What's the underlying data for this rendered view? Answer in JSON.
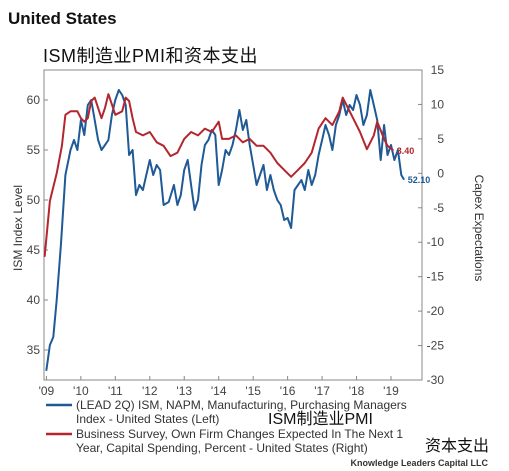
{
  "chart_data": {
    "type": "line",
    "title": "United States",
    "subtitle": "ISM制造业PMI和资本支出",
    "ylabel_left": "ISM Index Level",
    "ylabel_right": "Capex Expectations",
    "x_tick_labels": [
      "'09",
      "'10",
      "'11",
      "'12",
      "'13",
      "'14",
      "'15",
      "'16",
      "'17",
      "'18",
      "'19"
    ],
    "x_tick_values": [
      2009,
      2010,
      2011,
      2012,
      2013,
      2014,
      2015,
      2016,
      2017,
      2018,
      2019
    ],
    "xlim": [
      2008.93,
      2019.9
    ],
    "ylim_left": [
      32,
      63
    ],
    "ylim_right": [
      -30,
      15
    ],
    "yticks_left": [
      35,
      40,
      45,
      50,
      55,
      60
    ],
    "yticks_right": [
      15,
      10,
      5,
      0,
      -5,
      -10,
      -15,
      -20,
      -25,
      -30
    ],
    "grid": false,
    "legend_position": "bottom",
    "series": [
      {
        "name": "(LEAD 2Q) ISM, NAPM, Manufacturing, Purchasing Managers Index - United States (Left)",
        "legend_line1": "(LEAD 2Q) ISM, NAPM, Manufacturing, Purchasing Managers",
        "legend_line2": "Index - United States    (Left)",
        "axis": "left",
        "color": "#1f5a96",
        "points": [
          [
            2009.0,
            33.0
          ],
          [
            2009.1,
            35.5
          ],
          [
            2009.2,
            36.3
          ],
          [
            2009.3,
            40.0
          ],
          [
            2009.42,
            45.5
          ],
          [
            2009.55,
            52.5
          ],
          [
            2009.7,
            55.0
          ],
          [
            2009.8,
            56.0
          ],
          [
            2009.9,
            55.0
          ],
          [
            2010.0,
            58.0
          ],
          [
            2010.1,
            56.5
          ],
          [
            2010.2,
            59.5
          ],
          [
            2010.3,
            60.0
          ],
          [
            2010.4,
            58.0
          ],
          [
            2010.5,
            56.0
          ],
          [
            2010.6,
            55.0
          ],
          [
            2010.7,
            55.5
          ],
          [
            2010.8,
            56.0
          ],
          [
            2010.9,
            58.5
          ],
          [
            2011.0,
            60.0
          ],
          [
            2011.1,
            61.0
          ],
          [
            2011.2,
            60.5
          ],
          [
            2011.3,
            59.5
          ],
          [
            2011.4,
            54.5
          ],
          [
            2011.5,
            55.0
          ],
          [
            2011.6,
            50.5
          ],
          [
            2011.7,
            51.5
          ],
          [
            2011.8,
            51.0
          ],
          [
            2011.9,
            52.5
          ],
          [
            2012.0,
            54.0
          ],
          [
            2012.1,
            52.5
          ],
          [
            2012.2,
            53.5
          ],
          [
            2012.3,
            53.0
          ],
          [
            2012.4,
            49.5
          ],
          [
            2012.55,
            49.8
          ],
          [
            2012.7,
            51.5
          ],
          [
            2012.8,
            49.5
          ],
          [
            2012.9,
            50.5
          ],
          [
            2013.0,
            53.0
          ],
          [
            2013.1,
            54.0
          ],
          [
            2013.2,
            51.5
          ],
          [
            2013.3,
            49.0
          ],
          [
            2013.4,
            50.0
          ],
          [
            2013.5,
            53.5
          ],
          [
            2013.6,
            55.5
          ],
          [
            2013.7,
            56.0
          ],
          [
            2013.8,
            57.0
          ],
          [
            2013.9,
            56.5
          ],
          [
            2014.0,
            51.5
          ],
          [
            2014.1,
            53.0
          ],
          [
            2014.2,
            55.0
          ],
          [
            2014.3,
            54.5
          ],
          [
            2014.4,
            55.5
          ],
          [
            2014.5,
            57.0
          ],
          [
            2014.6,
            59.0
          ],
          [
            2014.7,
            57.0
          ],
          [
            2014.8,
            58.0
          ],
          [
            2014.9,
            55.5
          ],
          [
            2015.0,
            53.5
          ],
          [
            2015.1,
            51.5
          ],
          [
            2015.2,
            52.5
          ],
          [
            2015.3,
            53.5
          ],
          [
            2015.4,
            51.0
          ],
          [
            2015.5,
            52.5
          ],
          [
            2015.6,
            51.0
          ],
          [
            2015.7,
            50.0
          ],
          [
            2015.8,
            49.5
          ],
          [
            2015.9,
            48.0
          ],
          [
            2016.0,
            48.2
          ],
          [
            2016.1,
            47.2
          ],
          [
            2016.2,
            51.0
          ],
          [
            2016.3,
            51.5
          ],
          [
            2016.4,
            52.0
          ],
          [
            2016.5,
            51.0
          ],
          [
            2016.6,
            53.0
          ],
          [
            2016.7,
            51.5
          ],
          [
            2016.8,
            52.5
          ],
          [
            2016.9,
            54.5
          ],
          [
            2017.0,
            56.0
          ],
          [
            2017.1,
            57.5
          ],
          [
            2017.2,
            56.5
          ],
          [
            2017.3,
            55.0
          ],
          [
            2017.4,
            57.5
          ],
          [
            2017.5,
            58.5
          ],
          [
            2017.6,
            60.0
          ],
          [
            2017.7,
            58.5
          ],
          [
            2017.8,
            59.5
          ],
          [
            2017.9,
            59.0
          ],
          [
            2018.0,
            60.5
          ],
          [
            2018.1,
            59.5
          ],
          [
            2018.2,
            57.5
          ],
          [
            2018.3,
            58.5
          ],
          [
            2018.4,
            61.0
          ],
          [
            2018.5,
            59.5
          ],
          [
            2018.6,
            58.0
          ],
          [
            2018.7,
            54.0
          ],
          [
            2018.8,
            57.5
          ],
          [
            2018.9,
            54.5
          ],
          [
            2019.0,
            55.5
          ],
          [
            2019.1,
            54.0
          ],
          [
            2019.2,
            55.0
          ],
          [
            2019.3,
            52.5
          ],
          [
            2019.37,
            52.1
          ]
        ]
      },
      {
        "name": "Business Survey, Own Firm Changes Expected In The Next 1 Year, Capital Spending, Percent - United States (Right)",
        "legend_line1": "Business Survey, Own Firm Changes Expected In The Next 1",
        "legend_line2": "Year, Capital Spending, Percent - United States    (Right)",
        "axis": "right",
        "color": "#b3262e",
        "points": [
          [
            2008.95,
            -12.0
          ],
          [
            2009.1,
            -4.0
          ],
          [
            2009.3,
            0.0
          ],
          [
            2009.45,
            4.0
          ],
          [
            2009.55,
            8.5
          ],
          [
            2009.7,
            9.0
          ],
          [
            2009.9,
            9.0
          ],
          [
            2010.0,
            8.0
          ],
          [
            2010.1,
            7.5
          ],
          [
            2010.2,
            8.0
          ],
          [
            2010.3,
            10.5
          ],
          [
            2010.4,
            11.0
          ],
          [
            2010.5,
            9.5
          ],
          [
            2010.6,
            8.0
          ],
          [
            2010.7,
            9.5
          ],
          [
            2010.8,
            11.5
          ],
          [
            2010.9,
            10.0
          ],
          [
            2011.0,
            8.5
          ],
          [
            2011.2,
            9.0
          ],
          [
            2011.3,
            11.0
          ],
          [
            2011.4,
            10.5
          ],
          [
            2011.5,
            8.0
          ],
          [
            2011.6,
            6.0
          ],
          [
            2011.8,
            5.5
          ],
          [
            2012.0,
            6.0
          ],
          [
            2012.2,
            4.5
          ],
          [
            2012.4,
            4.0
          ],
          [
            2012.6,
            2.5
          ],
          [
            2012.8,
            3.0
          ],
          [
            2013.0,
            5.0
          ],
          [
            2013.2,
            6.0
          ],
          [
            2013.4,
            5.5
          ],
          [
            2013.6,
            6.5
          ],
          [
            2013.8,
            6.0
          ],
          [
            2014.0,
            7.5
          ],
          [
            2014.1,
            5.0
          ],
          [
            2014.3,
            5.0
          ],
          [
            2014.5,
            5.5
          ],
          [
            2014.7,
            4.5
          ],
          [
            2014.9,
            5.0
          ],
          [
            2015.1,
            4.0
          ],
          [
            2015.3,
            4.0
          ],
          [
            2015.5,
            3.0
          ],
          [
            2015.7,
            1.5
          ],
          [
            2015.9,
            0.5
          ],
          [
            2016.1,
            -0.5
          ],
          [
            2016.3,
            0.5
          ],
          [
            2016.5,
            1.5
          ],
          [
            2016.7,
            3.0
          ],
          [
            2016.9,
            6.5
          ],
          [
            2017.1,
            8.0
          ],
          [
            2017.3,
            7.0
          ],
          [
            2017.5,
            9.0
          ],
          [
            2017.6,
            11.0
          ],
          [
            2017.7,
            10.0
          ],
          [
            2017.9,
            8.0
          ],
          [
            2018.1,
            6.0
          ],
          [
            2018.3,
            3.5
          ],
          [
            2018.5,
            5.5
          ],
          [
            2018.6,
            7.5
          ],
          [
            2018.8,
            5.0
          ],
          [
            2018.9,
            4.0
          ],
          [
            2019.05,
            3.4
          ]
        ]
      }
    ],
    "end_labels": [
      {
        "text": "3.40",
        "x": 2019.05,
        "y": 3.4,
        "axis": "right",
        "color": "#b3262e"
      },
      {
        "text": "52.10",
        "x": 2019.37,
        "y": 52.1,
        "axis": "left",
        "color": "#1f5a96"
      }
    ]
  },
  "overlay_note_1": "ISM制造业PMI",
  "overlay_note_2": "资本支出",
  "credit": "Knowledge Leaders Capital LLC"
}
